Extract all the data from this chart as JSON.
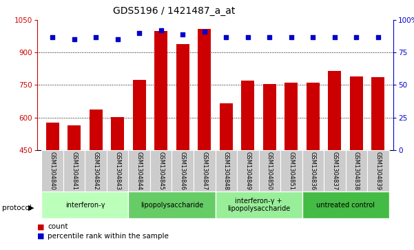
{
  "title": "GDS5196 / 1421487_a_at",
  "samples": [
    "GSM1304840",
    "GSM1304841",
    "GSM1304842",
    "GSM1304843",
    "GSM1304844",
    "GSM1304845",
    "GSM1304846",
    "GSM1304847",
    "GSM1304848",
    "GSM1304849",
    "GSM1304850",
    "GSM1304851",
    "GSM1304836",
    "GSM1304837",
    "GSM1304838",
    "GSM1304839"
  ],
  "bar_values": [
    575,
    565,
    638,
    603,
    775,
    1000,
    940,
    1010,
    667,
    770,
    755,
    760,
    760,
    815,
    790,
    785
  ],
  "dot_values": [
    87,
    85,
    87,
    85,
    90,
    92,
    89,
    91,
    87,
    87,
    87,
    87,
    87,
    87,
    87,
    87
  ],
  "groups": [
    {
      "label": "interferon-γ",
      "start": 0,
      "end": 4,
      "color": "#bbffbb"
    },
    {
      "label": "lipopolysaccharide",
      "start": 4,
      "end": 8,
      "color": "#66cc66"
    },
    {
      "label": "interferon-γ +\nlipopolysaccharide",
      "start": 8,
      "end": 12,
      "color": "#99ee99"
    },
    {
      "label": "untreated control",
      "start": 12,
      "end": 16,
      "color": "#44bb44"
    }
  ],
  "ylim_left": [
    450,
    1050
  ],
  "ylim_right": [
    0,
    100
  ],
  "yticks_left": [
    450,
    600,
    750,
    900,
    1050
  ],
  "yticks_right": [
    0,
    25,
    50,
    75,
    100
  ],
  "bar_color": "#cc0000",
  "dot_color": "#0000cc",
  "label_bg_color": "#cccccc",
  "title_fontsize": 10,
  "tick_fontsize": 7.5,
  "legend_count": "count",
  "legend_pct": "percentile rank within the sample"
}
